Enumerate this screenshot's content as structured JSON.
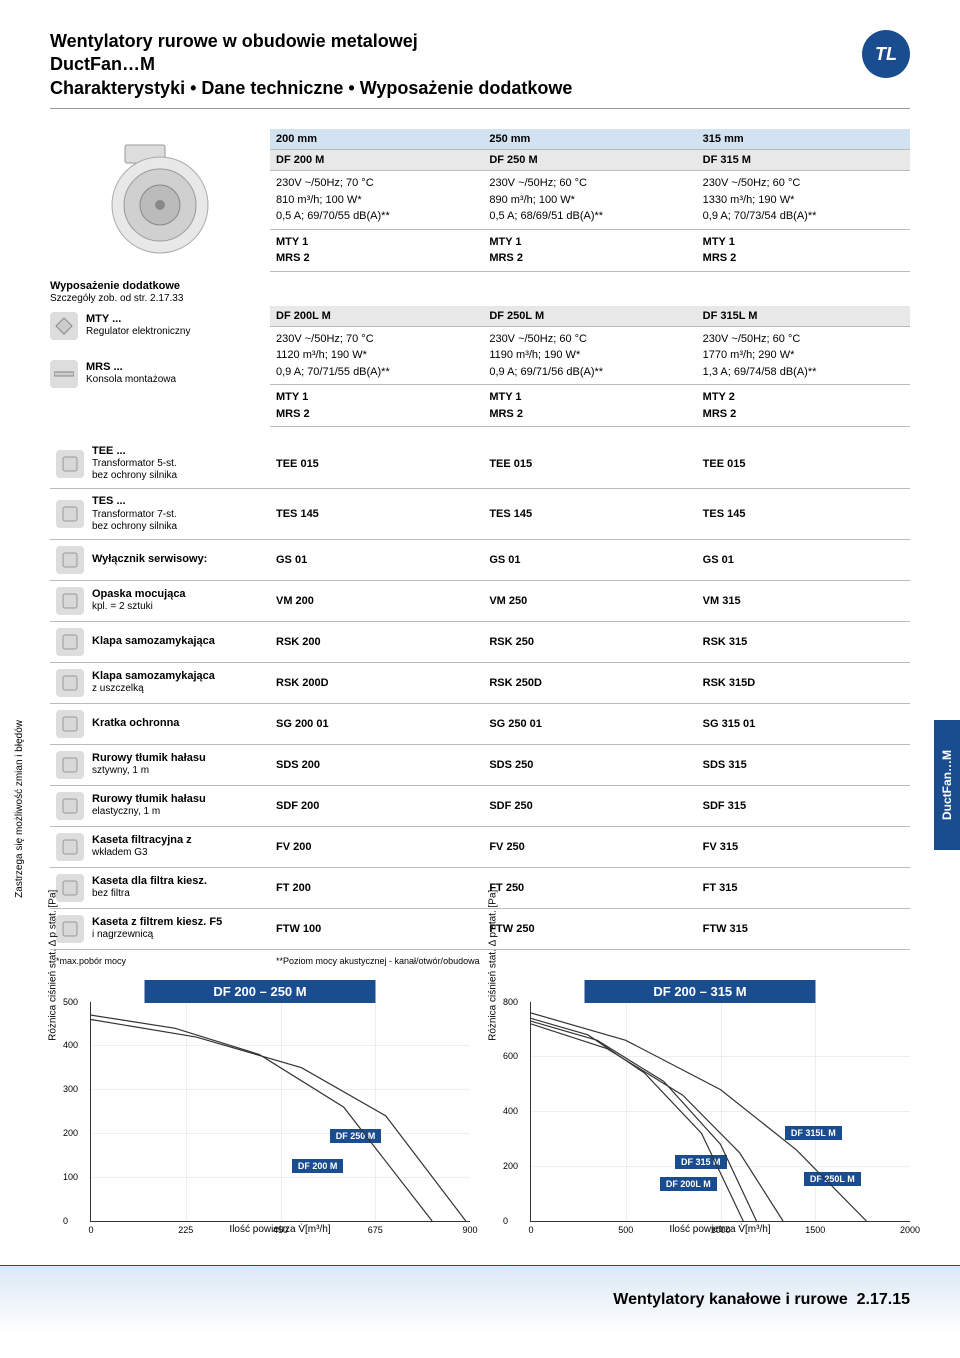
{
  "header": {
    "line1": "Wentylatory rurowe w obudowie metalowej",
    "line2": "DuctFan…M",
    "line3": "Charakterystyki • Dane techniczne • Wyposażenie dodatkowe",
    "logo": "TL"
  },
  "cols": {
    "c1": {
      "size": "200 mm",
      "model": "DF 200 M"
    },
    "c2": {
      "size": "250 mm",
      "model": "DF 250 M"
    },
    "c3": {
      "size": "315 mm",
      "model": "DF 315 M"
    }
  },
  "specs1": {
    "c1": {
      "l1": "230V ~/50Hz; 70 °C",
      "l2": "810 m³/h; 100 W*",
      "l3": "0,5 A; 69/70/55 dB(A)**"
    },
    "c2": {
      "l1": "230V ~/50Hz; 60 °C",
      "l2": "890 m³/h; 100 W*",
      "l3": "0,5 A; 68/69/51 dB(A)**"
    },
    "c3": {
      "l1": "230V ~/50Hz; 60 °C",
      "l2": "1330 m³/h; 190 W*",
      "l3": "0,9 A; 70/73/54 dB(A)**"
    }
  },
  "mty1": {
    "c1": {
      "l1": "MTY 1",
      "l2": "MRS 2"
    },
    "c2": {
      "l1": "MTY 1",
      "l2": "MRS 2"
    },
    "c3": {
      "l1": "MTY 1",
      "l2": "MRS 2"
    }
  },
  "acc_header": {
    "title": "Wyposażenie dodatkowe",
    "sub": "Szczegóły zob. od str. 2.17.33"
  },
  "cols2": {
    "c1": {
      "model": "DF 200L M"
    },
    "c2": {
      "model": "DF 250L M"
    },
    "c3": {
      "model": "DF 315L M"
    }
  },
  "specs2": {
    "c1": {
      "l1": "230V ~/50Hz; 70 °C",
      "l2": "1120 m³/h; 190 W*",
      "l3": "0,9 A; 70/71/55 dB(A)**"
    },
    "c2": {
      "l1": "230V ~/50Hz; 60 °C",
      "l2": "1190 m³/h; 190 W*",
      "l3": "0,9 A; 69/71/56 dB(A)**"
    },
    "c3": {
      "l1": "230V ~/50Hz; 60 °C",
      "l2": "1770 m³/h; 290 W*",
      "l3": "1,3 A; 69/74/58 dB(A)**"
    }
  },
  "mty2": {
    "c1": {
      "l1": "MTY 1",
      "l2": "MRS 2"
    },
    "c2": {
      "l1": "MTY 1",
      "l2": "MRS 2"
    },
    "c3": {
      "l1": "MTY 2",
      "l2": "MRS 2"
    }
  },
  "left_acc": {
    "mty": {
      "main": "MTY ...",
      "sub": "Regulator elektroniczny"
    },
    "mrs": {
      "main": "MRS ...",
      "sub": "Konsola montażowa"
    }
  },
  "accessories": [
    {
      "main": "TEE ...",
      "sub": "Transformator 5-st.",
      "sub2": "bez ochrony silnika",
      "c1": "TEE 015",
      "c2": "TEE 015",
      "c3": "TEE 015"
    },
    {
      "main": "TES ...",
      "sub": "Transformator 7-st.",
      "sub2": "bez ochrony silnika",
      "c1": "TES 145",
      "c2": "TES 145",
      "c3": "TES 145"
    },
    {
      "main": "Wyłącznik serwisowy:",
      "sub": "",
      "sub2": "",
      "c1": "GS 01",
      "c2": "GS 01",
      "c3": "GS 01"
    },
    {
      "main": "Opaska mocująca",
      "sub": "kpl. = 2 sztuki",
      "sub2": "",
      "c1": "VM 200",
      "c2": "VM 250",
      "c3": "VM 315"
    },
    {
      "main": "Klapa samozamykająca",
      "sub": "",
      "sub2": "",
      "c1": "RSK 200",
      "c2": "RSK 250",
      "c3": "RSK 315"
    },
    {
      "main": "Klapa samozamykająca",
      "sub": "z uszczelką",
      "sub2": "",
      "c1": "RSK 200D",
      "c2": "RSK 250D",
      "c3": "RSK 315D"
    },
    {
      "main": "Kratka ochronna",
      "sub": "",
      "sub2": "",
      "c1": "SG 200 01",
      "c2": "SG 250 01",
      "c3": "SG 315 01"
    },
    {
      "main": "Rurowy tłumik hałasu",
      "sub": "sztywny, 1 m",
      "sub2": "",
      "c1": "SDS 200",
      "c2": "SDS 250",
      "c3": "SDS 315"
    },
    {
      "main": "Rurowy tłumik hałasu",
      "sub": "elastyczny, 1 m",
      "sub2": "",
      "c1": "SDF 200",
      "c2": "SDF 250",
      "c3": "SDF 315"
    },
    {
      "main": "Kaseta filtracyjna z",
      "sub": "wkładem G3",
      "sub2": "",
      "c1": "FV 200",
      "c2": "FV 250",
      "c3": "FV 315"
    },
    {
      "main": "Kaseta dla filtra kiesz.",
      "sub": "bez filtra",
      "sub2": "",
      "c1": "FT 200",
      "c2": "FT 250",
      "c3": "FT 315"
    },
    {
      "main": "Kaseta z filtrem kiesz. F5",
      "sub": "i nagrzewnicą",
      "sub2": "",
      "c1": "FTW 100",
      "c2": "FTW 250",
      "c3": "FTW 315"
    }
  ],
  "footnotes": {
    "left": "*max.pobór mocy",
    "right": "**Poziom mocy akustycznej - kanał/otwór/obudowa"
  },
  "chart1": {
    "title": "DF 200 – 250 M",
    "ylabel": "Różnica ciśnień stat. Δ p stat. [Pa]",
    "xlabel": "Ilość powietrza V̇[m³/h]",
    "ylim": [
      0,
      500
    ],
    "ytick_step": 100,
    "xlim": [
      0,
      900
    ],
    "xticks": [
      0,
      225,
      450,
      675,
      900
    ],
    "curves": [
      {
        "label": "DF 200 M",
        "label_pos": {
          "x": 53,
          "y": 72
        },
        "points": [
          [
            0,
            470
          ],
          [
            200,
            440
          ],
          [
            400,
            380
          ],
          [
            600,
            260
          ],
          [
            810,
            0
          ]
        ]
      },
      {
        "label": "DF 250 M",
        "label_pos": {
          "x": 63,
          "y": 58
        },
        "points": [
          [
            0,
            460
          ],
          [
            250,
            420
          ],
          [
            500,
            350
          ],
          [
            700,
            240
          ],
          [
            890,
            0
          ]
        ]
      }
    ],
    "bg": "#ffffff",
    "grid_color": "#eeeeee",
    "line_color": "#333333",
    "label_bg": "#1a4d8f"
  },
  "chart2": {
    "title": "DF 200 – 315 M",
    "ylabel": "Różnica ciśnień stat. Δ p stat. [Pa]",
    "xlabel": "Ilość powietrza V̇[m³/h]",
    "ylim": [
      0,
      800
    ],
    "ytick_step": 200,
    "xlim": [
      0,
      2000
    ],
    "xticks": [
      0,
      500,
      1000,
      1500,
      2000
    ],
    "curves": [
      {
        "label": "DF 200L M",
        "label_pos": {
          "x": 34,
          "y": 80
        },
        "points": [
          [
            0,
            740
          ],
          [
            300,
            680
          ],
          [
            600,
            540
          ],
          [
            900,
            320
          ],
          [
            1120,
            0
          ]
        ]
      },
      {
        "label": "DF 250L M",
        "label_pos": {
          "x": 72,
          "y": 78
        },
        "points": [
          [
            0,
            730
          ],
          [
            350,
            660
          ],
          [
            700,
            510
          ],
          [
            1000,
            280
          ],
          [
            1190,
            0
          ]
        ]
      },
      {
        "label": "DF 315 M",
        "label_pos": {
          "x": 38,
          "y": 70
        },
        "points": [
          [
            0,
            720
          ],
          [
            400,
            630
          ],
          [
            800,
            460
          ],
          [
            1100,
            250
          ],
          [
            1330,
            0
          ]
        ]
      },
      {
        "label": "DF 315L M",
        "label_pos": {
          "x": 67,
          "y": 57
        },
        "points": [
          [
            0,
            760
          ],
          [
            500,
            660
          ],
          [
            1000,
            480
          ],
          [
            1400,
            260
          ],
          [
            1770,
            0
          ]
        ]
      }
    ],
    "bg": "#ffffff",
    "grid_color": "#eeeeee",
    "line_color": "#333333",
    "label_bg": "#1a4d8f"
  },
  "side_tab": "DuctFan…M",
  "side_note": "Zastrzega się możliwość zmian i błędów",
  "footer": {
    "text": "Wentylatory kanałowe i rurowe",
    "page": "2.17.15"
  }
}
